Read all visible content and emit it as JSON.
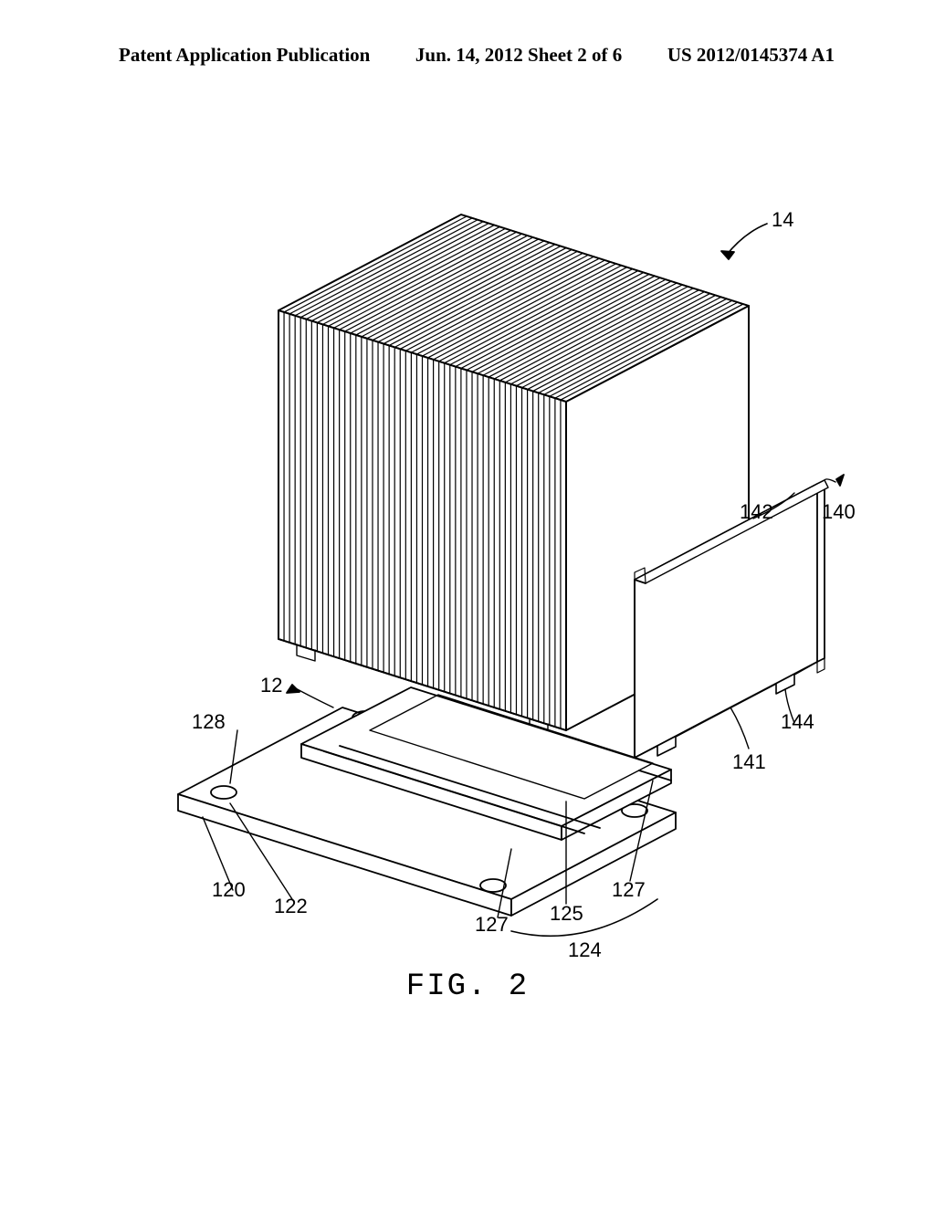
{
  "header": {
    "left": "Patent Application Publication",
    "center": "Jun. 14, 2012  Sheet 2 of 6",
    "right": "US 2012/0145374 A1"
  },
  "figure": {
    "caption": "FIG. 2",
    "labels": {
      "l14": "14",
      "l142": "142",
      "l140": "140",
      "l12": "12",
      "l128": "128",
      "l144": "144",
      "l141": "141",
      "l120": "120",
      "l122": "122",
      "l127a": "127",
      "l127b": "127",
      "l125": "125",
      "l124": "124"
    },
    "style": {
      "stroke": "#000000",
      "fill_light": "#ffffff",
      "background": "#ffffff",
      "linewidth_thin": 1.2,
      "linewidth_med": 1.8,
      "fin_count": 52
    }
  }
}
